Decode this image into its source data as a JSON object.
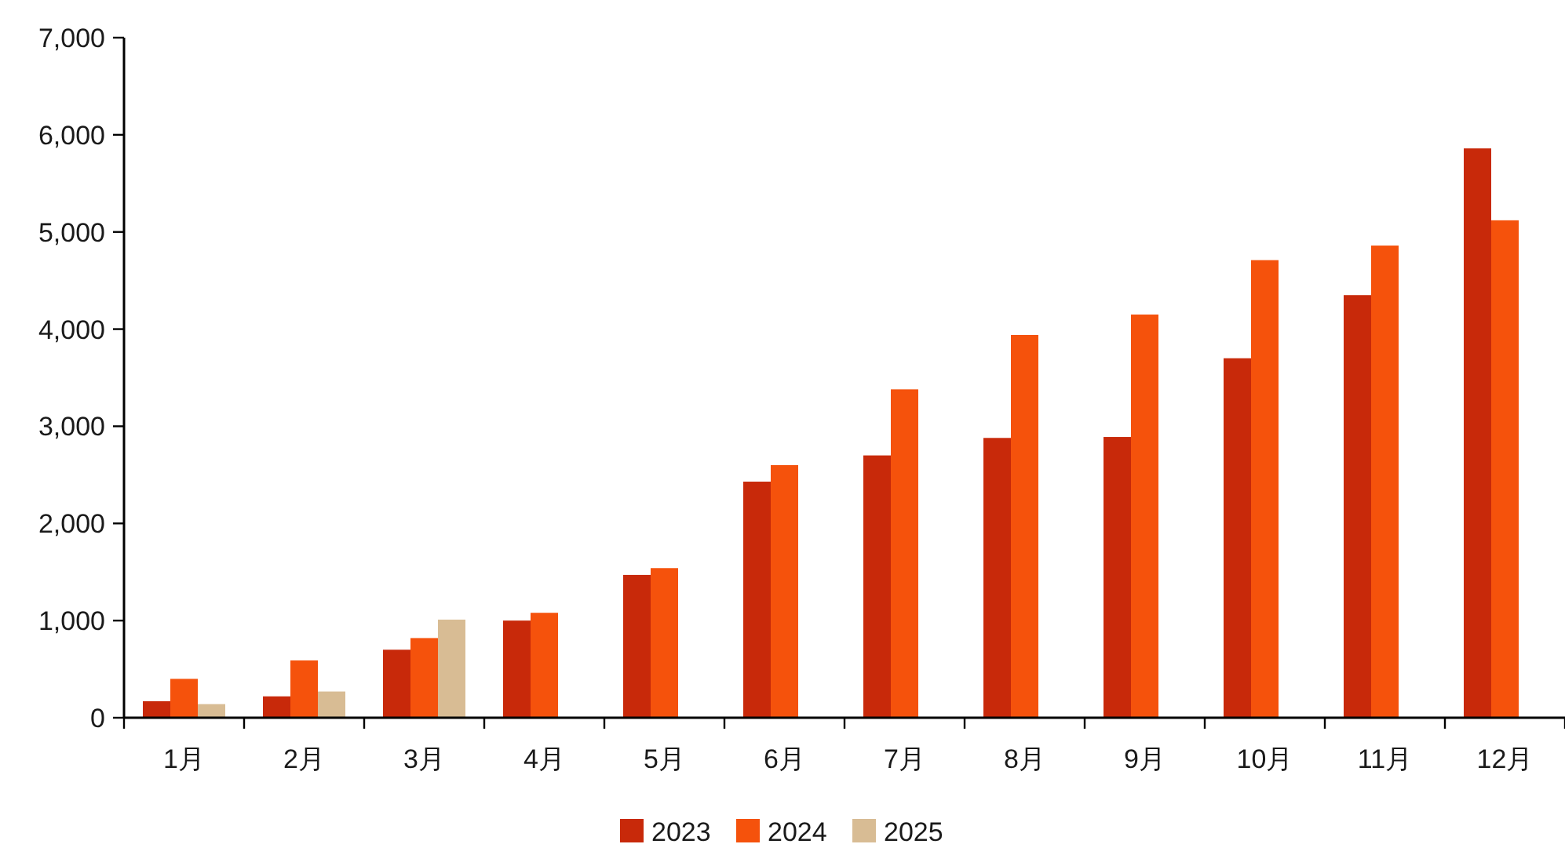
{
  "chart_data": {
    "type": "bar",
    "categories": [
      "1月",
      "2月",
      "3月",
      "4月",
      "5月",
      "6月",
      "7月",
      "8月",
      "9月",
      "10月",
      "11月",
      "12月"
    ],
    "series": [
      {
        "name": "2023",
        "color": "#c8290a",
        "values": [
          170,
          220,
          700,
          1000,
          1470,
          2430,
          2700,
          2880,
          2890,
          3700,
          4350,
          5860
        ]
      },
      {
        "name": "2024",
        "color": "#f5520c",
        "values": [
          400,
          590,
          820,
          1080,
          1540,
          2600,
          3380,
          3940,
          4150,
          4710,
          4860,
          5120
        ]
      },
      {
        "name": "2025",
        "color": "#d8bc94",
        "values": [
          140,
          270,
          1010,
          null,
          null,
          null,
          null,
          null,
          null,
          null,
          null,
          null
        ]
      }
    ],
    "ylim": [
      0,
      7000
    ],
    "yticks": [
      {
        "value": 0,
        "label": "0"
      },
      {
        "value": 1000,
        "label": "1,000"
      },
      {
        "value": 2000,
        "label": "2,000"
      },
      {
        "value": 3000,
        "label": "3,000"
      },
      {
        "value": 4000,
        "label": "4,000"
      },
      {
        "value": 5000,
        "label": "5,000"
      },
      {
        "value": 6000,
        "label": "6,000"
      },
      {
        "value": 7000,
        "label": "7,000"
      }
    ],
    "grid": false,
    "legend": "bottom"
  }
}
